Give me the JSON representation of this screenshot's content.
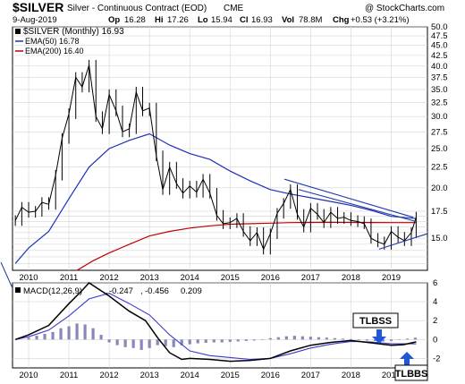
{
  "header": {
    "symbol": "$SILVER",
    "description": "Silver - Continuous Contract (EOD)",
    "exchange": "CME",
    "copyright": "@ StockCharts.com",
    "date": "9-Aug-2019",
    "quote": {
      "open_label": "Op",
      "open": "16.28",
      "high_label": "Hi",
      "high": "17.26",
      "low_label": "Lo",
      "low": "15.94",
      "close_label": "Cl",
      "close": "16.93",
      "volume_label": "Vol",
      "volume": "78.8M",
      "change_label": "Chg",
      "change": "+0.53 (+3.21%)"
    }
  },
  "legend": {
    "main": "$SILVER (Monthly) 16.93",
    "ema50": "EMA(50) 16.78",
    "ema200": "EMA(200) 16.40"
  },
  "macd_legend": {
    "label": "MACD(12,26,9)",
    "macd": "-0.247",
    "signal": "-0.456",
    "hist": "0.209"
  },
  "annotations": {
    "tlbss": "TLBSS",
    "tlbbs": "TLBBS"
  },
  "colors": {
    "price": "#000000",
    "ema50": "#1e2fb8",
    "ema200": "#c00000",
    "trendline": "#1e3aa8",
    "macd_line": "#000000",
    "signal_line": "#3a3ad0",
    "histogram": "#8888b8",
    "arrow": "#1f57d6",
    "grid": "#d4d4d4"
  },
  "chart_data": [
    {
      "type": "candlestick",
      "title": "$SILVER Silver - Continuous Contract (EOD) CME",
      "ylim": [
        12.5,
        50
      ],
      "log_scale": true,
      "grid": true,
      "legend_position": "top-left",
      "y_ticks": [
        13.0,
        13.5,
        14.0,
        14.5,
        15.0,
        15.5,
        16.0,
        16.5,
        17.0,
        17.5,
        20.0,
        22.5,
        25.0,
        27.5,
        30.0,
        32.5,
        35.0,
        37.5,
        40.0,
        42.5,
        45.0,
        47.5,
        50.0
      ],
      "y_tick_labels": [
        "",
        "",
        "",
        "",
        "15.0",
        "",
        "",
        "",
        "",
        "17.5",
        "20.0",
        "22.5",
        "25.0",
        "27.5",
        "30.0",
        "32.5",
        "35.0",
        "37.5",
        "40.0",
        "42.5",
        "45.0",
        "47.5",
        "50.0"
      ],
      "x_tick_labels": [
        "2010",
        "2011",
        "2012",
        "2013",
        "2014",
        "2015",
        "2016",
        "2017",
        "2018",
        "2019"
      ],
      "x_ticks": [
        2010.0,
        2011.0,
        2012.0,
        2013.0,
        2014.0,
        2015.0,
        2016.0,
        2017.0,
        2018.0,
        2019.0
      ],
      "x_range": [
        2009.6,
        2019.9
      ],
      "price_close": [
        [
          2009.67,
          16.6
        ],
        [
          2009.83,
          17.9
        ],
        [
          2010.0,
          17.4
        ],
        [
          2010.17,
          17.5
        ],
        [
          2010.33,
          18.4
        ],
        [
          2010.5,
          18.2
        ],
        [
          2010.67,
          21.5
        ],
        [
          2010.83,
          26.5
        ],
        [
          2011.0,
          30.5
        ],
        [
          2011.17,
          37.5
        ],
        [
          2011.33,
          35.5
        ],
        [
          2011.5,
          40.2
        ],
        [
          2011.67,
          30.0
        ],
        [
          2011.83,
          28.0
        ],
        [
          2012.0,
          34.0
        ],
        [
          2012.17,
          31.0
        ],
        [
          2012.33,
          27.5
        ],
        [
          2012.5,
          28.0
        ],
        [
          2012.67,
          34.5
        ],
        [
          2012.83,
          31.0
        ],
        [
          2013.0,
          31.5
        ],
        [
          2013.17,
          24.0
        ],
        [
          2013.33,
          19.8
        ],
        [
          2013.5,
          22.5
        ],
        [
          2013.67,
          20.5
        ],
        [
          2013.83,
          19.4
        ],
        [
          2014.0,
          20.2
        ],
        [
          2014.17,
          19.5
        ],
        [
          2014.33,
          21.0
        ],
        [
          2014.5,
          19.4
        ],
        [
          2014.67,
          17.1
        ],
        [
          2014.83,
          16.3
        ],
        [
          2015.0,
          16.4
        ],
        [
          2015.17,
          16.8
        ],
        [
          2015.33,
          15.6
        ],
        [
          2015.5,
          14.8
        ],
        [
          2015.67,
          15.5
        ],
        [
          2015.83,
          14.1
        ],
        [
          2016.0,
          15.4
        ],
        [
          2016.17,
          17.3
        ],
        [
          2016.33,
          18.3
        ],
        [
          2016.5,
          19.8
        ],
        [
          2016.67,
          17.2
        ],
        [
          2016.83,
          16.0
        ],
        [
          2017.0,
          17.8
        ],
        [
          2017.17,
          17.2
        ],
        [
          2017.33,
          16.4
        ],
        [
          2017.5,
          17.4
        ],
        [
          2017.67,
          16.8
        ],
        [
          2017.83,
          16.9
        ],
        [
          2018.0,
          16.6
        ],
        [
          2018.17,
          16.5
        ],
        [
          2018.33,
          16.3
        ],
        [
          2018.5,
          15.0
        ],
        [
          2018.67,
          14.7
        ],
        [
          2018.83,
          14.5
        ],
        [
          2019.0,
          15.6
        ],
        [
          2019.17,
          15.1
        ],
        [
          2019.33,
          14.8
        ],
        [
          2019.5,
          15.5
        ],
        [
          2019.62,
          16.93
        ]
      ],
      "ema50": [
        [
          2009.67,
          13.0
        ],
        [
          2010.0,
          14.2
        ],
        [
          2010.5,
          15.6
        ],
        [
          2011.0,
          18.8
        ],
        [
          2011.5,
          22.5
        ],
        [
          2012.0,
          25.0
        ],
        [
          2012.5,
          26.2
        ],
        [
          2013.0,
          27.2
        ],
        [
          2013.5,
          25.5
        ],
        [
          2014.0,
          24.3
        ],
        [
          2014.5,
          23.5
        ],
        [
          2015.0,
          22.0
        ],
        [
          2015.5,
          20.8
        ],
        [
          2016.0,
          19.8
        ],
        [
          2016.5,
          19.3
        ],
        [
          2017.0,
          18.9
        ],
        [
          2017.5,
          18.5
        ],
        [
          2018.0,
          18.1
        ],
        [
          2018.5,
          17.6
        ],
        [
          2019.0,
          17.0
        ],
        [
          2019.62,
          16.78
        ]
      ],
      "ema200": [
        [
          2011.2,
          12.5
        ],
        [
          2011.6,
          13.2
        ],
        [
          2012.0,
          13.8
        ],
        [
          2012.5,
          14.5
        ],
        [
          2013.0,
          15.2
        ],
        [
          2013.5,
          15.6
        ],
        [
          2014.0,
          15.9
        ],
        [
          2014.5,
          16.1
        ],
        [
          2015.0,
          16.25
        ],
        [
          2015.5,
          16.3
        ],
        [
          2016.0,
          16.35
        ],
        [
          2016.5,
          16.4
        ],
        [
          2017.0,
          16.42
        ],
        [
          2017.5,
          16.43
        ],
        [
          2018.0,
          16.42
        ],
        [
          2018.5,
          16.41
        ],
        [
          2019.0,
          16.4
        ],
        [
          2019.62,
          16.4
        ]
      ],
      "trendlines": [
        [
          [
            2016.35,
            21.0
          ],
          [
            2019.55,
            16.9
          ]
        ],
        [
          [
            2016.7,
            19.8
          ],
          [
            2019.62,
            16.5
          ]
        ],
        [
          [
            2018.7,
            14.1
          ],
          [
            2019.9,
            15.4
          ]
        ]
      ]
    },
    {
      "type": "line",
      "title": "MACD(12,26,9)",
      "ylim": [
        -3,
        6
      ],
      "y_ticks": [
        -2,
        0,
        2,
        4,
        6
      ],
      "y_tick_labels": [
        "-2",
        "0",
        "2",
        "4",
        "6"
      ],
      "x_tick_labels": [
        "2010",
        "2011",
        "2012",
        "2013",
        "2014",
        "2015",
        "2016",
        "2017",
        "2018",
        "2019"
      ],
      "x_ticks": [
        2010.0,
        2011.0,
        2012.0,
        2013.0,
        2014.0,
        2015.0,
        2016.0,
        2017.0,
        2018.0,
        2019.0
      ],
      "x_range": [
        2009.6,
        2019.9
      ],
      "series": [
        {
          "values": [
            [
              2009.67,
              0.0
            ],
            [
              2010.0,
              0.5
            ],
            [
              2010.5,
              1.5
            ],
            [
              2011.0,
              3.8
            ],
            [
              2011.33,
              5.2
            ],
            [
              2011.5,
              6.0
            ],
            [
              2012.0,
              4.6
            ],
            [
              2012.5,
              3.0
            ],
            [
              2012.9,
              2.0
            ],
            [
              2013.2,
              0.2
            ],
            [
              2013.5,
              -1.4
            ],
            [
              2013.8,
              -2.1
            ],
            [
              2014.0,
              -2.0
            ],
            [
              2014.5,
              -2.1
            ],
            [
              2015.0,
              -2.3
            ],
            [
              2015.5,
              -2.2
            ],
            [
              2016.0,
              -2.0
            ],
            [
              2016.5,
              -1.2
            ],
            [
              2017.0,
              -0.6
            ],
            [
              2017.5,
              -0.3
            ],
            [
              2018.0,
              -0.1
            ],
            [
              2018.5,
              -0.35
            ],
            [
              2019.0,
              -0.6
            ],
            [
              2019.3,
              -0.55
            ],
            [
              2019.62,
              -0.247
            ]
          ]
        },
        {
          "values": [
            [
              2009.67,
              0.0
            ],
            [
              2010.0,
              0.3
            ],
            [
              2010.5,
              1.0
            ],
            [
              2011.0,
              2.5
            ],
            [
              2011.5,
              4.3
            ],
            [
              2012.0,
              4.9
            ],
            [
              2012.5,
              3.8
            ],
            [
              2013.0,
              2.6
            ],
            [
              2013.5,
              0.5
            ],
            [
              2014.0,
              -1.2
            ],
            [
              2014.5,
              -1.7
            ],
            [
              2015.0,
              -1.9
            ],
            [
              2015.5,
              -2.1
            ],
            [
              2016.0,
              -2.0
            ],
            [
              2016.5,
              -1.5
            ],
            [
              2017.0,
              -0.9
            ],
            [
              2017.5,
              -0.5
            ],
            [
              2018.0,
              -0.2
            ],
            [
              2018.5,
              -0.25
            ],
            [
              2019.0,
              -0.45
            ],
            [
              2019.62,
              -0.456
            ]
          ]
        }
      ],
      "histogram": [
        [
          2010.0,
          0.2
        ],
        [
          2010.2,
          0.4
        ],
        [
          2010.4,
          0.6
        ],
        [
          2010.6,
          0.8
        ],
        [
          2010.8,
          1.2
        ],
        [
          2011.0,
          1.4
        ],
        [
          2011.2,
          1.7
        ],
        [
          2011.4,
          1.6
        ],
        [
          2011.6,
          1.2
        ],
        [
          2011.8,
          0.5
        ],
        [
          2012.0,
          -0.3
        ],
        [
          2012.2,
          -0.6
        ],
        [
          2012.4,
          -0.8
        ],
        [
          2012.6,
          -0.9
        ],
        [
          2012.8,
          -1.1
        ],
        [
          2013.0,
          -0.9
        ],
        [
          2013.2,
          -0.6
        ],
        [
          2013.4,
          -0.7
        ],
        [
          2013.6,
          -0.8
        ],
        [
          2013.8,
          -0.6
        ],
        [
          2014.0,
          -0.5
        ],
        [
          2014.2,
          -0.4
        ],
        [
          2014.4,
          -0.35
        ],
        [
          2014.6,
          -0.3
        ],
        [
          2014.8,
          -0.3
        ],
        [
          2015.0,
          -0.25
        ],
        [
          2015.2,
          -0.2
        ],
        [
          2015.4,
          -0.15
        ],
        [
          2015.6,
          -0.1
        ],
        [
          2015.8,
          0.0
        ],
        [
          2016.0,
          0.15
        ],
        [
          2016.2,
          0.25
        ],
        [
          2016.4,
          0.35
        ],
        [
          2016.6,
          0.4
        ],
        [
          2016.8,
          0.35
        ],
        [
          2017.0,
          0.3
        ],
        [
          2017.2,
          0.25
        ],
        [
          2017.4,
          0.2
        ],
        [
          2017.6,
          0.15
        ],
        [
          2017.8,
          0.1
        ],
        [
          2018.0,
          0.05
        ],
        [
          2018.2,
          -0.05
        ],
        [
          2018.4,
          -0.1
        ],
        [
          2018.6,
          -0.15
        ],
        [
          2018.8,
          -0.2
        ],
        [
          2019.0,
          -0.15
        ],
        [
          2019.2,
          -0.05
        ],
        [
          2019.4,
          0.1
        ],
        [
          2019.6,
          0.2
        ]
      ]
    }
  ]
}
